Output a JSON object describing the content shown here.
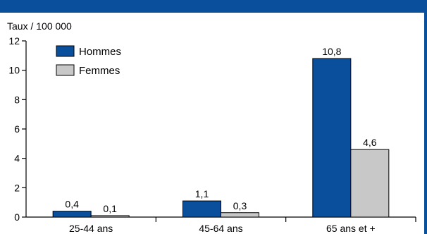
{
  "colors": {
    "band": "#0a4f9c",
    "hommes": "#0a4f9c",
    "femmes": "#c8c8c8",
    "axis": "#000000"
  },
  "chart_data": {
    "type": "bar",
    "ylabel": "Taux / 100 000",
    "xlabel": "",
    "title": "",
    "ylim": [
      0,
      12
    ],
    "yticks": [
      0,
      2,
      4,
      6,
      8,
      10,
      12
    ],
    "grid": false,
    "legend_position": "top-left",
    "categories": [
      "25-44 ans",
      "45-64 ans",
      "65 ans et +"
    ],
    "series": [
      {
        "name": "Hommes",
        "values": [
          0.4,
          1.1,
          10.8
        ],
        "labels": [
          "0,4",
          "1,1",
          "10,8"
        ],
        "color": "#0a4f9c"
      },
      {
        "name": "Femmes",
        "values": [
          0.1,
          0.3,
          4.6
        ],
        "labels": [
          "0,1",
          "0,3",
          "4,6"
        ],
        "color": "#c8c8c8"
      }
    ]
  }
}
